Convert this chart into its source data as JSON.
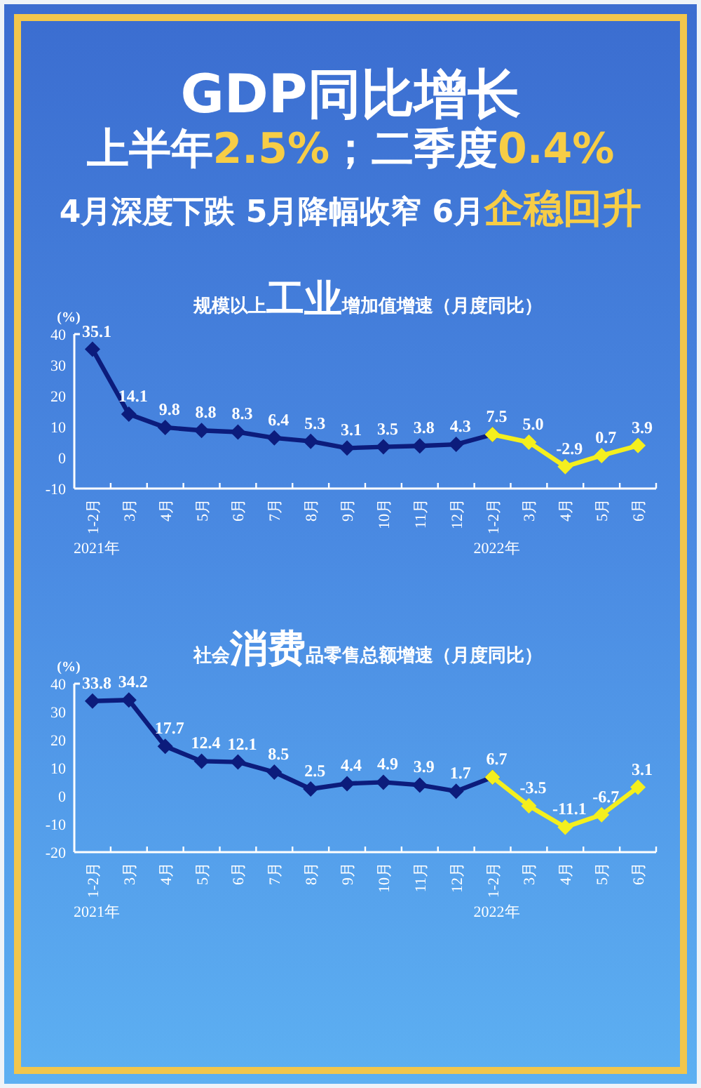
{
  "chart_data": [
    {
      "type": "other",
      "title": "GDP同比增长",
      "subtitle": "上半年**2.5%**；二季度**0.4%**",
      "annotations": [
        "4月深度下跌 5月降幅收窄 6月**企稳回升**"
      ]
    },
    {
      "type": "line",
      "title": "规模以上**工业**增加值增速（月度同比）",
      "ylabel": "(%)",
      "categories": [
        "1-2月",
        "3月",
        "4月",
        "5月",
        "6月",
        "7月",
        "8月",
        "9月",
        "10月",
        "11月",
        "12月",
        "1-2月",
        "3月",
        "4月",
        "5月",
        "6月"
      ],
      "ylim": [
        -10,
        40
      ],
      "yticks": [
        -10,
        0,
        10,
        20,
        30,
        40
      ],
      "marker": "diamond",
      "series": [
        {
          "color": "#0c1c7c",
          "values": [
            35.1,
            14.1,
            9.8,
            8.8,
            8.3,
            6.4,
            5.3,
            3.1,
            3.5,
            3.8,
            4.3,
            7.5,
            null,
            null,
            null,
            null
          ],
          "value_labels": [
            "35.1",
            "14.1",
            "9.8",
            "8.8",
            "8.3",
            "6.4",
            "5.3",
            "3.1",
            "3.5",
            "3.8",
            "4.3",
            null,
            null,
            null,
            null,
            null
          ]
        },
        {
          "color": "#f4ef1e",
          "values": [
            null,
            null,
            null,
            null,
            null,
            null,
            null,
            null,
            null,
            null,
            null,
            7.5,
            5.0,
            -2.9,
            0.7,
            3.9
          ],
          "value_labels": [
            null,
            null,
            null,
            null,
            null,
            null,
            null,
            null,
            null,
            null,
            null,
            "7.5",
            "5.0",
            "-2.9",
            "0.7",
            "3.9"
          ]
        }
      ],
      "annotations": [
        "2021年",
        "2022年"
      ]
    },
    {
      "type": "line",
      "title": "社会**消费**品零售总额增速（月度同比）",
      "ylabel": "(%)",
      "categories": [
        "1-2月",
        "3月",
        "4月",
        "5月",
        "6月",
        "7月",
        "8月",
        "9月",
        "10月",
        "11月",
        "12月",
        "1-2月",
        "3月",
        "4月",
        "5月",
        "6月"
      ],
      "ylim": [
        -20,
        40
      ],
      "yticks": [
        -20,
        -10,
        0,
        10,
        20,
        30,
        40
      ],
      "marker": "diamond",
      "series": [
        {
          "color": "#0c1c7c",
          "values": [
            33.8,
            34.2,
            17.7,
            12.4,
            12.1,
            8.5,
            2.5,
            4.4,
            4.9,
            3.9,
            1.7,
            6.7,
            null,
            null,
            null,
            null
          ],
          "value_labels": [
            "33.8",
            "34.2",
            "17.7",
            "12.4",
            "12.1",
            "8.5",
            "2.5",
            "4.4",
            "4.9",
            "3.9",
            "1.7",
            null,
            null,
            null,
            null,
            null
          ]
        },
        {
          "color": "#f4ef1e",
          "values": [
            null,
            null,
            null,
            null,
            null,
            null,
            null,
            null,
            null,
            null,
            null,
            6.7,
            -3.5,
            -11.1,
            -6.7,
            3.1
          ],
          "value_labels": [
            null,
            null,
            null,
            null,
            null,
            null,
            null,
            null,
            null,
            null,
            null,
            "6.7",
            "-3.5",
            "-11.1",
            "-6.7",
            "3.1"
          ]
        }
      ],
      "annotations": [
        "2021年",
        "2022年"
      ]
    }
  ]
}
